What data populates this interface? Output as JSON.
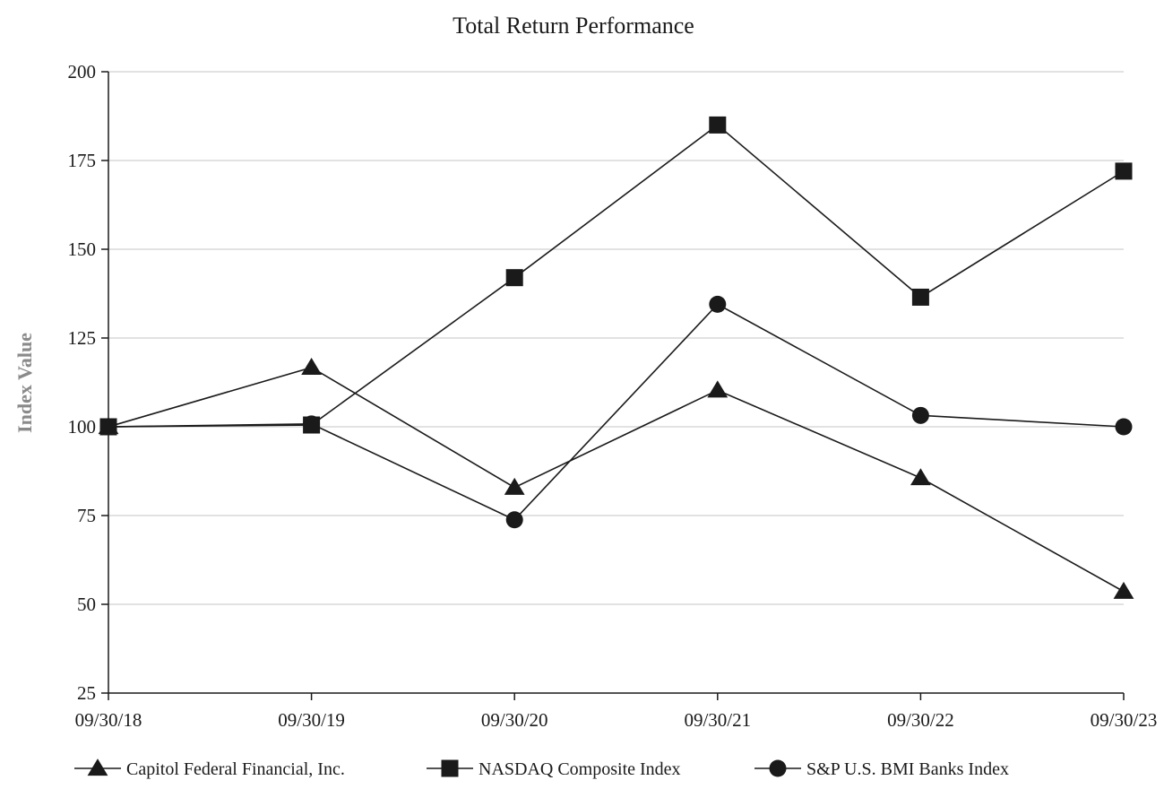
{
  "chart_data": {
    "type": "line",
    "title": "Total Return Performance",
    "xlabel": "",
    "ylabel": "Index Value",
    "categories": [
      "09/30/18",
      "09/30/19",
      "09/30/20",
      "09/30/21",
      "09/30/22",
      "09/30/23"
    ],
    "ylim": [
      25,
      200
    ],
    "yticks": [
      25,
      50,
      75,
      100,
      125,
      150,
      175,
      200
    ],
    "grid": true,
    "legend_position": "bottom",
    "series": [
      {
        "name": "Capitol Federal Financial, Inc.",
        "marker": "triangle",
        "values": [
          100,
          116.7,
          82.9,
          110.3,
          85.6,
          53.6
        ]
      },
      {
        "name": "NASDAQ Composite Index",
        "marker": "square",
        "values": [
          100,
          100.5,
          142,
          185,
          136.5,
          172
        ]
      },
      {
        "name": "S&P U.S. BMI Banks Index",
        "marker": "circle",
        "values": [
          100,
          100.8,
          73.8,
          134.5,
          103.2,
          100
        ]
      }
    ],
    "colors": {
      "line": "#1a1a1a",
      "grid": "#d9d9d9",
      "axis": "#1a1a1a"
    }
  }
}
